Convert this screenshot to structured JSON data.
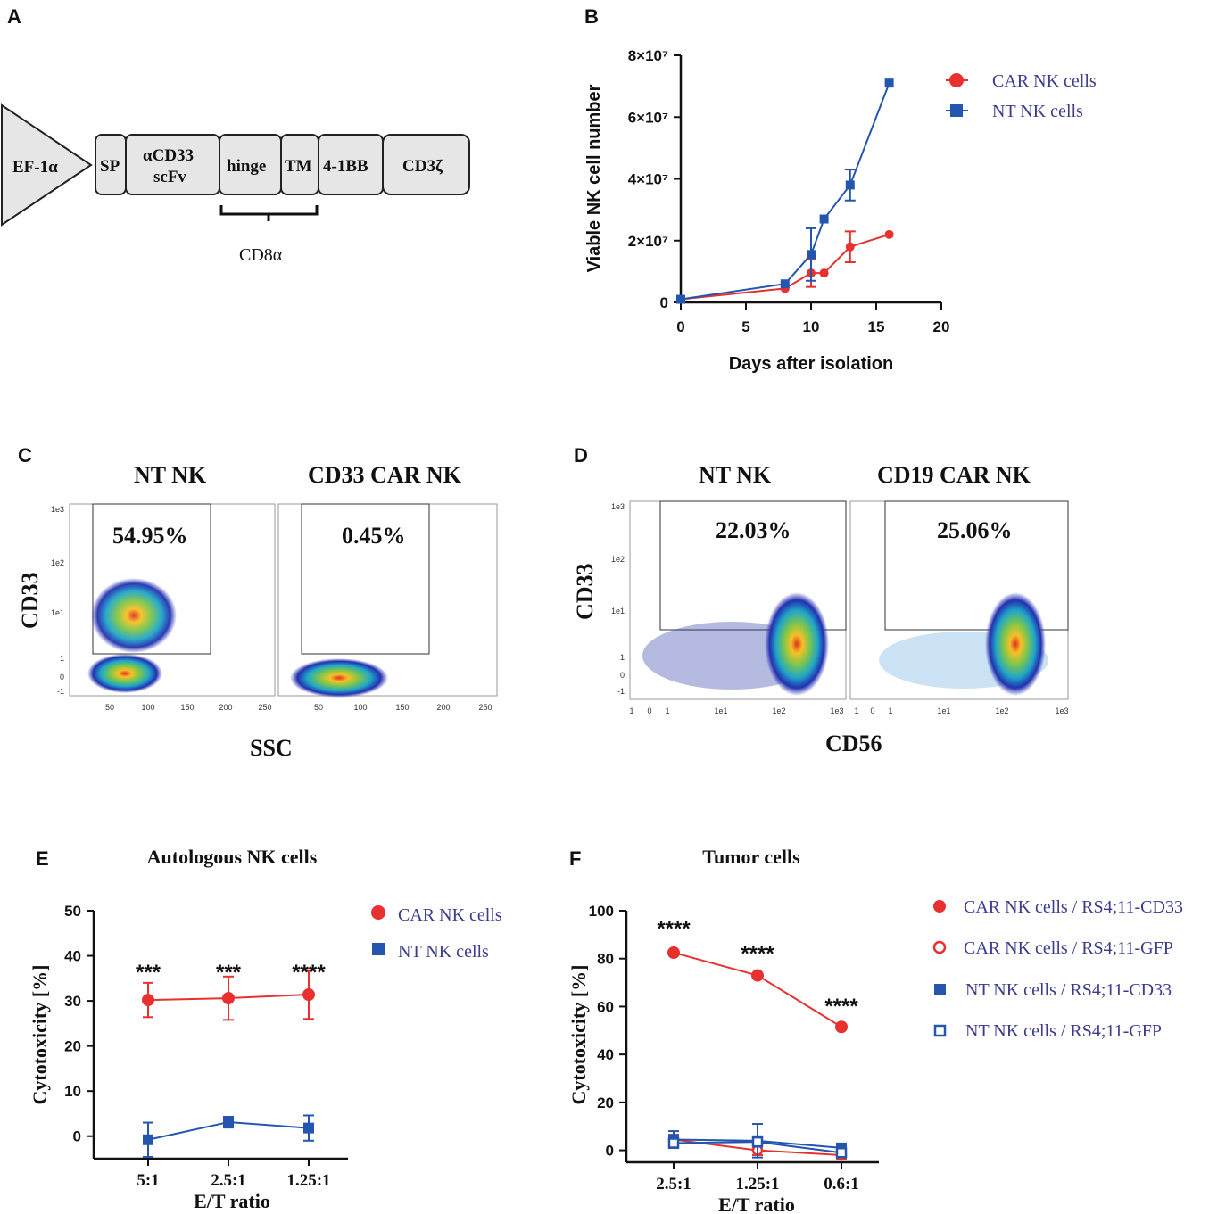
{
  "panels": {
    "a": "A",
    "b": "B",
    "c": "C",
    "d": "D",
    "e": "E",
    "f": "F"
  },
  "construct": {
    "promoter": "EF-1α",
    "segments": [
      "SP",
      "αCD33",
      "scFv",
      "hinge",
      "TM",
      "4-1BB",
      "CD3ζ"
    ],
    "bracket_label": "CD8α"
  },
  "flow_c": {
    "titles": [
      "NT NK",
      "CD33 CAR NK"
    ],
    "percents": [
      "54.95%",
      "0.45%"
    ],
    "ylabel": "CD33",
    "xlabel": "SSC",
    "yticks": [
      "1e3",
      "1e2",
      "1e1",
      "1",
      "0",
      "-1"
    ],
    "xticks": [
      "50",
      "100",
      "150",
      "200",
      "250"
    ]
  },
  "flow_d": {
    "titles": [
      "NT NK",
      "CD19 CAR NK"
    ],
    "percents": [
      "22.03%",
      "25.06%"
    ],
    "ylabel": "CD33",
    "xlabel": "CD56",
    "yticks": [
      "1e3",
      "1e2",
      "1e1",
      "1",
      "0",
      "-1"
    ],
    "xticks": [
      "1",
      "0",
      "1",
      "1e1",
      "1e2",
      "1e3"
    ]
  },
  "chart_data": [
    {
      "id": "B",
      "type": "line",
      "title": "",
      "xlabel": "Days after isolation",
      "ylabel": "Viable NK cell number",
      "xlim": [
        0,
        20
      ],
      "ylim": [
        0,
        80000000
      ],
      "xticks": [
        "0",
        "5",
        "10",
        "15",
        "20"
      ],
      "yticks": [
        "0",
        "2×10⁷",
        "4×10⁷",
        "6×10⁷",
        "8×10⁷"
      ],
      "series": [
        {
          "name": "CAR NK cells",
          "color": "#e8312f",
          "marker": "circle",
          "x": [
            0,
            8,
            10,
            11,
            13,
            16
          ],
          "y": [
            1000000,
            4500000,
            9500000,
            9500000,
            18000000,
            22000000
          ],
          "err": [
            0,
            0,
            4500000,
            0,
            5000000,
            0
          ]
        },
        {
          "name": "NT NK cells",
          "color": "#2456b0",
          "marker": "square",
          "x": [
            0,
            8,
            10,
            11,
            13,
            16
          ],
          "y": [
            1000000,
            6000000,
            15500000,
            27000000,
            38000000,
            71000000
          ],
          "err": [
            0,
            0,
            8500000,
            0,
            5000000,
            0
          ]
        }
      ]
    },
    {
      "id": "E",
      "type": "line",
      "title": "Autologous NK cells",
      "xlabel": "E/T ratio",
      "ylabel": "Cytotoxicity [%]",
      "categories": [
        "5:1",
        "2.5:1",
        "1.25:1"
      ],
      "ylim": [
        -5,
        50
      ],
      "yticks": [
        "0",
        "10",
        "20",
        "30",
        "40",
        "50"
      ],
      "significance": [
        "***",
        "***",
        "****"
      ],
      "series": [
        {
          "name": "CAR NK cells",
          "color": "#e8312f",
          "marker": "circle",
          "values": [
            30.2,
            30.6,
            31.4
          ],
          "err": [
            3.8,
            4.8,
            5.4
          ]
        },
        {
          "name": "NT NK cells",
          "color": "#2456b0",
          "marker": "square",
          "values": [
            -0.8,
            3.1,
            1.8
          ],
          "err": [
            3.8,
            1.2,
            2.8
          ]
        }
      ]
    },
    {
      "id": "F",
      "type": "line",
      "title": "Tumor cells",
      "xlabel": "E/T ratio",
      "ylabel": "Cytotoxicity [%]",
      "categories": [
        "2.5:1",
        "1.25:1",
        "0.6:1"
      ],
      "ylim": [
        -5,
        100
      ],
      "yticks": [
        "0",
        "20",
        "40",
        "60",
        "80",
        "100"
      ],
      "significance": [
        "****",
        "****",
        "****"
      ],
      "series": [
        {
          "name": "CAR NK cells / RS4;11-CD33",
          "color": "#e8312f",
          "marker": "circle",
          "values": [
            82.5,
            73,
            51.5
          ],
          "err": [
            0,
            0,
            0
          ]
        },
        {
          "name": "CAR NK cells / RS4;11-GFP",
          "color": "#e8312f",
          "marker": "circle-open",
          "values": [
            4.5,
            0,
            -2
          ],
          "err": [
            2,
            2,
            1.5
          ]
        },
        {
          "name": "NT NK cells / RS4;11-CD33",
          "color": "#2456b0",
          "marker": "square",
          "values": [
            4.5,
            4,
            1
          ],
          "err": [
            3.5,
            7,
            1.5
          ]
        },
        {
          "name": "NT NK cells / RS4;11-GFP",
          "color": "#2456b0",
          "marker": "square-open",
          "values": [
            3,
            3.5,
            -1
          ],
          "err": [
            2,
            2,
            1.5
          ]
        }
      ]
    }
  ]
}
